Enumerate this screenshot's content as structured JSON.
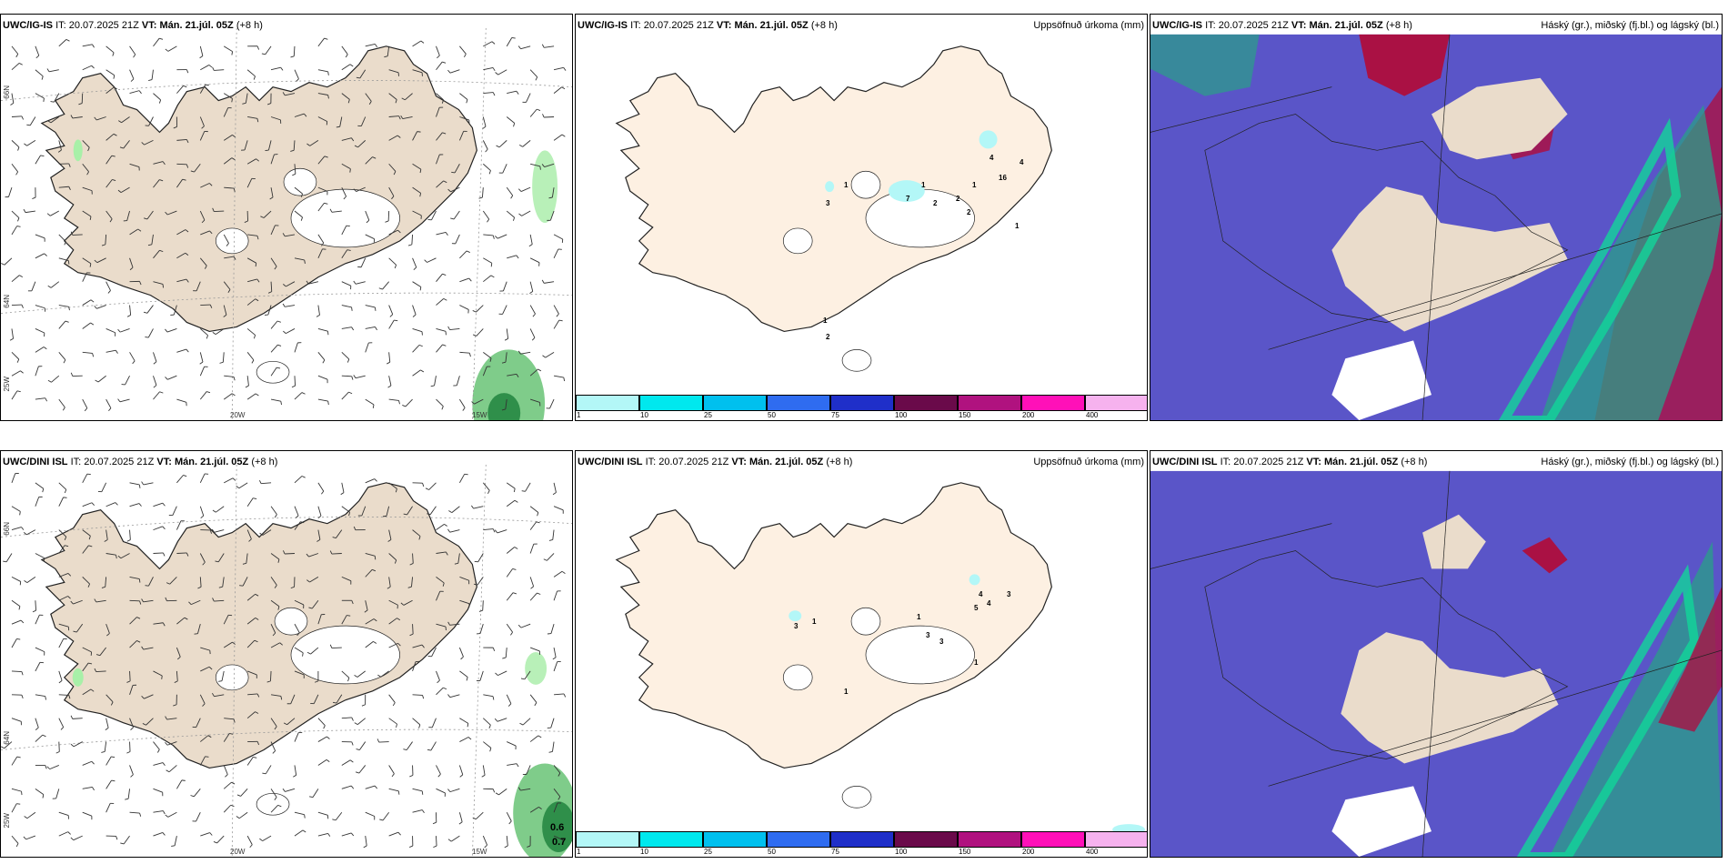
{
  "panels": {
    "ig_wind": {
      "model": "UWC/IG-IS",
      "it_label": "IT:",
      "it": "20.07.2025 21Z",
      "vt_label": "VT:",
      "vt": "Mán. 21.júl. 05Z",
      "lead": "(+8 h)"
    },
    "ig_precip": {
      "model": "UWC/IG-IS",
      "it_label": "IT:",
      "it": "20.07.2025 21Z",
      "vt_label": "VT:",
      "vt": "Mán. 21.júl. 05Z",
      "lead": "(+8 h)",
      "title_right": "Uppsöfnuð úrkoma (mm)"
    },
    "ig_cloud": {
      "model": "UWC/IG-IS",
      "it_label": "IT:",
      "it": "20.07.2025 21Z",
      "vt_label": "VT:",
      "vt": "Mán. 21.júl. 05Z",
      "lead": "(+8 h)",
      "title_right": "Háský (gr.), miðský (fj.bl.) og lágský (bl.)"
    },
    "dini_wind": {
      "model": "UWC/DINI ISL",
      "it_label": "IT:",
      "it": "20.07.2025 21Z",
      "vt_label": "VT:",
      "vt": "Mán. 21.júl. 05Z",
      "lead": "(+8 h)"
    },
    "dini_precip": {
      "model": "UWC/DINI ISL",
      "it_label": "IT:",
      "it": "20.07.2025 21Z",
      "vt_label": "VT:",
      "vt": "Mán. 21.júl. 05Z",
      "lead": "(+8 h)",
      "title_right": "Uppsöfnuð úrkoma (mm)"
    },
    "dini_cloud": {
      "model": "UWC/DINI ISL",
      "it_label": "IT:",
      "it": "20.07.2025 21Z",
      "vt_label": "VT:",
      "vt": "Mán. 21.júl. 05Z",
      "lead": "(+8 h)",
      "title_right": "Háský (gr.), miðský (fj.bl.) og lágský (bl.)"
    }
  },
  "grid_labels": {
    "lat_66": "66N",
    "lat_64": "64N",
    "lon_25": "25W",
    "lon_20": "20W",
    "lon_15": "15W"
  },
  "colorbar": {
    "ticks": [
      "1",
      "10",
      "25",
      "50",
      "75",
      "100",
      "150",
      "200",
      "400"
    ],
    "colors": [
      "#b3f7f7",
      "#00e8ee",
      "#00c0ee",
      "#2f6cf0",
      "#1f2fc9",
      "#6a0a4a",
      "#b0127f",
      "#ff10b8",
      "#f6b2ee"
    ]
  },
  "ig_precip_values": [
    "1",
    "3",
    "1",
    "7",
    "2",
    "2",
    "2",
    "1",
    "4",
    "16",
    "4",
    "1",
    "1",
    "2"
  ],
  "dini_precip_values": [
    "3",
    "1",
    "1",
    "3",
    "3",
    "4",
    "5",
    "4",
    "3",
    "1",
    "1"
  ],
  "dini_wind_values": [
    "0.6",
    "0.7"
  ],
  "colors": {
    "land": "#eadccb",
    "land_precip": "#fdf0e2",
    "cloud_low": "#5a55c8",
    "cloud_high": "#aa1144",
    "cloud_mid": "#2aa88a"
  }
}
